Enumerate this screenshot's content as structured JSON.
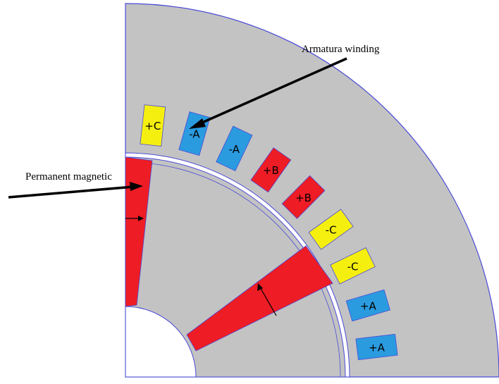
{
  "annotations": {
    "armature": "Armatura winding",
    "magnet": "Permanent magnetic"
  },
  "slots": [
    {
      "label": "+C",
      "phase": "C"
    },
    {
      "label": "-A",
      "phase": "A"
    },
    {
      "label": "-A",
      "phase": "A"
    },
    {
      "label": "+B",
      "phase": "B"
    },
    {
      "label": "+B",
      "phase": "B"
    },
    {
      "label": "-C",
      "phase": "C"
    },
    {
      "label": "-C",
      "phase": "C"
    },
    {
      "label": "+A",
      "phase": "A"
    },
    {
      "label": "+A",
      "phase": "A"
    }
  ],
  "colors": {
    "A": "#2b9be0",
    "B": "#ee1c25",
    "C": "#f5ef10",
    "magnet": "#ee1c25",
    "iron": "#c3c3c3",
    "outline": "#4a4ad8"
  }
}
